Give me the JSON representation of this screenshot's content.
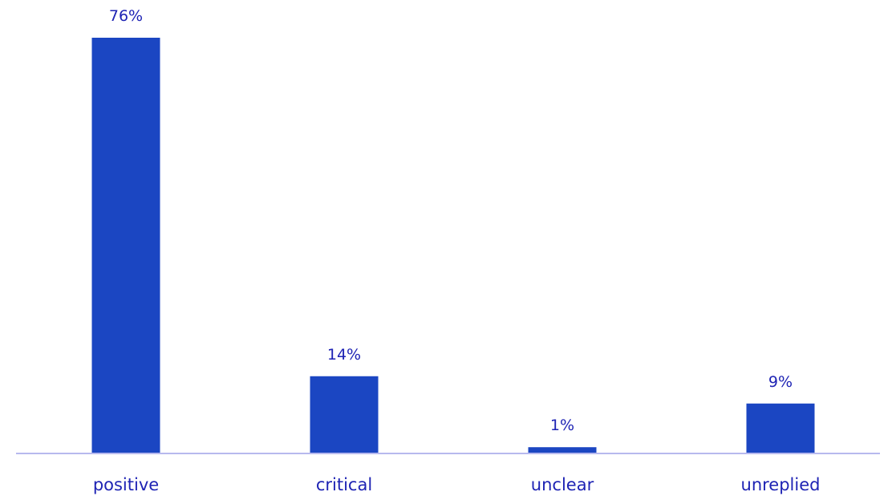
{
  "chart_data": {
    "type": "bar",
    "title": "",
    "xlabel": "",
    "ylabel": "",
    "categories": [
      "positive",
      "critical",
      "unclear",
      "unreplied"
    ],
    "values": [
      76,
      14,
      1,
      9
    ],
    "value_labels": [
      "76%",
      "14%",
      "1%",
      "9%"
    ],
    "ylim": [
      0,
      76
    ],
    "grid": false,
    "legend": "none",
    "colors": {
      "bar": "#1b46c2",
      "text": "#1e23b4",
      "axis": "#b7b9ee"
    }
  }
}
